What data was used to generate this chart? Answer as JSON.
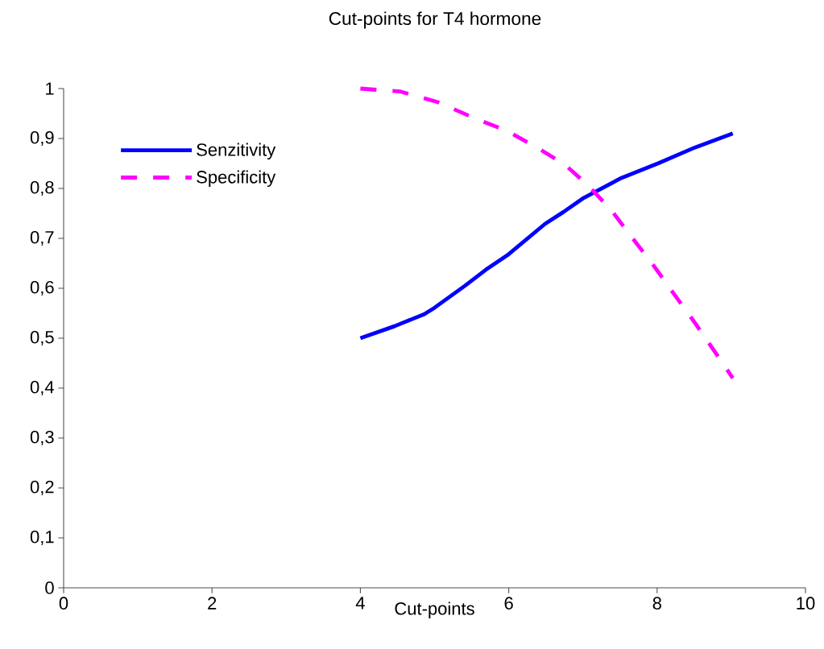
{
  "chart_data": {
    "type": "line",
    "title": "Cut-points for T4 hormone",
    "xlabel": "Cut-points",
    "series": [
      {
        "name": "Senzitivity",
        "color": "#0000ff",
        "line_style": "solid",
        "x": [
          4,
          4.46,
          4.86,
          5.0,
          5.41,
          5.69,
          5.98,
          6.49,
          6.74,
          7.01,
          7.52,
          8.01,
          8.51,
          9.02
        ],
        "values": [
          0.5,
          0.524,
          0.548,
          0.561,
          0.605,
          0.637,
          0.666,
          0.729,
          0.753,
          0.781,
          0.821,
          0.85,
          0.882,
          0.91
        ]
      },
      {
        "name": "Specificity",
        "color": "#ff00ff",
        "line_style": "dashed",
        "x": [
          4,
          4.54,
          5.04,
          5.55,
          5.98,
          6.38,
          6.76,
          7.07,
          7.39,
          7.67,
          7.94,
          8.21,
          8.48,
          8.75,
          9.02
        ],
        "values": [
          1.0,
          0.994,
          0.973,
          0.94,
          0.915,
          0.882,
          0.847,
          0.806,
          0.755,
          0.7,
          0.648,
          0.592,
          0.537,
          0.479,
          0.42
        ]
      }
    ],
    "xlim": [
      0,
      10
    ],
    "ylim": [
      0,
      1
    ],
    "xticks": [
      0,
      2,
      4,
      6,
      8,
      10
    ],
    "yticks": [
      0,
      {
        "value": 0.1,
        "label": "0,1"
      },
      {
        "value": 0.2,
        "label": "0,2"
      },
      {
        "value": 0.3,
        "label": "0,3"
      },
      {
        "value": 0.4,
        "label": "0,4"
      },
      {
        "value": 0.5,
        "label": "0,5"
      },
      {
        "value": 0.6,
        "label": "0,6"
      },
      {
        "value": 0.7,
        "label": "0,7"
      },
      {
        "value": 0.8,
        "label": "0,8"
      },
      {
        "value": 0.9,
        "label": "0,9"
      },
      1
    ],
    "grid": false,
    "legend": "top left",
    "marker": "none"
  }
}
